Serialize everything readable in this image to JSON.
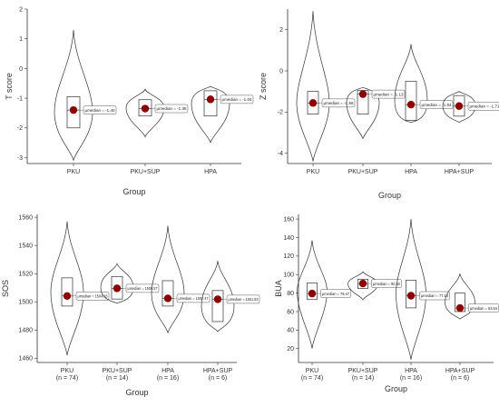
{
  "figure": {
    "caption": ""
  },
  "chart_data": [
    {
      "id": "t_score",
      "type": "violin",
      "xlabel": "Group",
      "ylabel": "T score",
      "ylim": [
        -3.2,
        2.0
      ],
      "yticks": [
        2,
        1,
        0,
        -1,
        -2,
        -3
      ],
      "yticklabels": [
        "2",
        "1",
        "0",
        "-1",
        "-2",
        "-3"
      ],
      "categories": [
        "PKU",
        "PKU+SUP",
        "HPA"
      ],
      "category_counts": [
        "",
        "",
        ""
      ],
      "groups": [
        {
          "name": "PKU",
          "median": -1.4,
          "label": "μmedian = -1.40",
          "violin_min": -3.1,
          "violin_max": 1.3,
          "q1": -2.0,
          "q3": -0.95
        },
        {
          "name": "PKU+SUP",
          "median": -1.35,
          "label": "μmedian = -1.35",
          "violin_min": -2.3,
          "violin_max": -0.7,
          "q1": -1.6,
          "q3": -1.05
        },
        {
          "name": "HPA",
          "median": -1.04,
          "label": "μmedian = -1.04",
          "violin_min": -2.5,
          "violin_max": -0.6,
          "q1": -1.6,
          "q3": -0.75
        }
      ],
      "colors": {
        "point": "#8b0000",
        "outline": "#333333"
      }
    },
    {
      "id": "z_score",
      "type": "violin",
      "xlabel": "Group",
      "ylabel": "Z score",
      "ylim": [
        -4.5,
        3.0
      ],
      "yticks": [
        2,
        0,
        -2,
        -4
      ],
      "yticklabels": [
        "2",
        "0",
        "-2",
        "-4"
      ],
      "categories": [
        "PKU",
        "PKU+SUP",
        "HPA",
        "HPA+SUP"
      ],
      "category_counts": [
        "",
        "",
        "",
        ""
      ],
      "groups": [
        {
          "name": "PKU",
          "median": -1.56,
          "label": "μmedian = -1.56",
          "violin_min": -4.4,
          "violin_max": 2.9,
          "q1": -2.1,
          "q3": -1.0
        },
        {
          "name": "PKU+SUP",
          "median": -1.13,
          "label": "μmedian = -1.13",
          "violin_min": -3.3,
          "violin_max": -0.8,
          "q1": -2.1,
          "q3": -0.95
        },
        {
          "name": "HPA",
          "median": -1.64,
          "label": "μmedian = -1.64",
          "violin_min": -2.5,
          "violin_max": 1.3,
          "q1": -2.4,
          "q3": -0.5
        },
        {
          "name": "HPA+SUP",
          "median": -1.71,
          "label": "μmedian = -1.71",
          "violin_min": -2.5,
          "violin_max": -1.0,
          "q1": -2.2,
          "q3": -1.2
        }
      ],
      "colors": {
        "point": "#8b0000",
        "outline": "#333333"
      }
    },
    {
      "id": "sos",
      "type": "violin",
      "xlabel": "Group",
      "ylabel": "SOS",
      "ylim": [
        1457,
        1562
      ],
      "yticks": [
        1560,
        1540,
        1520,
        1500,
        1480,
        1460
      ],
      "yticklabels": [
        "1560",
        "1540",
        "1520",
        "1500",
        "1480",
        "1460"
      ],
      "categories": [
        "PKU",
        "PKU+SUP",
        "HPA",
        "HPA+SUP"
      ],
      "category_counts": [
        "(n = 74)",
        "(n = 14)",
        "(n = 16)",
        "(n = 6)"
      ],
      "groups": [
        {
          "name": "PKU",
          "median": 1504.16,
          "label": "μmedian = 1504.16",
          "violin_min": 1462,
          "violin_max": 1557,
          "q1": 1497,
          "q3": 1517
        },
        {
          "name": "PKU+SUP",
          "median": 1509.57,
          "label": "μmedian = 1509.57",
          "violin_min": 1499,
          "violin_max": 1527,
          "q1": 1502,
          "q3": 1518
        },
        {
          "name": "HPA",
          "median": 1502.47,
          "label": "μmedian = 1502.47",
          "violin_min": 1478,
          "violin_max": 1554,
          "q1": 1497,
          "q3": 1515
        },
        {
          "name": "HPA+SUP",
          "median": 1501.83,
          "label": "μmedian = 1501.83",
          "violin_min": 1479,
          "violin_max": 1529,
          "q1": 1486,
          "q3": 1508
        }
      ],
      "colors": {
        "point": "#8b0000",
        "outline": "#333333"
      }
    },
    {
      "id": "bua",
      "type": "violin",
      "xlabel": "Group",
      "ylabel": "BUA",
      "ylim": [
        5,
        165
      ],
      "yticks": [
        160,
        140,
        120,
        100,
        80,
        60,
        40,
        20
      ],
      "yticklabels": [
        "160",
        "140",
        "120",
        "100",
        "80",
        "60",
        "40",
        "20"
      ],
      "categories": [
        "PKU",
        "PKU+SUP",
        "HPA",
        "HPA+SUP"
      ],
      "category_counts": [
        "(n = 74)",
        "(n = 14)",
        "(n = 16)",
        "(n = 6)"
      ],
      "groups": [
        {
          "name": "PKU",
          "median": 79.47,
          "label": "μmedian = 79.47",
          "violin_min": 20,
          "violin_max": 137,
          "q1": 73,
          "q3": 91
        },
        {
          "name": "PKU+SUP",
          "median": 90.32,
          "label": "μmedian = 90.32",
          "violin_min": 73,
          "violin_max": 103,
          "q1": 85,
          "q3": 95
        },
        {
          "name": "HPA",
          "median": 77.14,
          "label": "μmedian = 77.14",
          "violin_min": 8,
          "violin_max": 160,
          "q1": 64,
          "q3": 94
        },
        {
          "name": "HPA+SUP",
          "median": 63.84,
          "label": "μmedian = 63.84",
          "violin_min": 52,
          "violin_max": 101,
          "q1": 60,
          "q3": 80
        }
      ],
      "colors": {
        "point": "#8b0000",
        "outline": "#333333"
      }
    }
  ]
}
